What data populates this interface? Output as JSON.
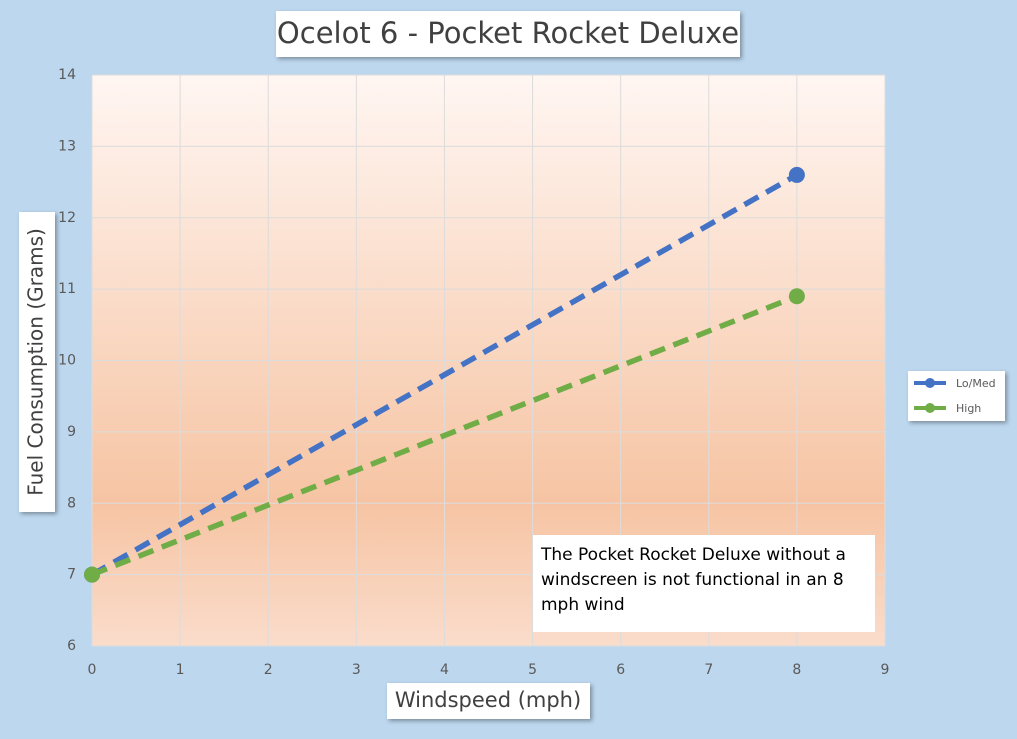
{
  "chart_data": {
    "type": "line",
    "title": "Ocelot 6 - Pocket Rocket Deluxe",
    "x_label": "Windspeed (mph)",
    "y_label": "Fuel Consumption (Grams)",
    "x": [
      0,
      8
    ],
    "series": [
      {
        "name": "Lo/Med",
        "color": "#4472c4",
        "values": [
          7,
          12.6
        ]
      },
      {
        "name": "High",
        "color": "#70ad47",
        "values": [
          7,
          10.9
        ]
      }
    ],
    "xlim": [
      0,
      9
    ],
    "xticks": [
      0,
      1,
      2,
      3,
      4,
      5,
      6,
      7,
      8,
      9
    ],
    "ylim": [
      6,
      14
    ],
    "yticks": [
      6,
      7,
      8,
      9,
      10,
      11,
      12,
      13,
      14
    ],
    "grid": true,
    "legend": "right",
    "line_style": "dashed",
    "annotation": "The Pocket Rocket Deluxe without a windscreen is not functional in an 8 mph wind"
  }
}
